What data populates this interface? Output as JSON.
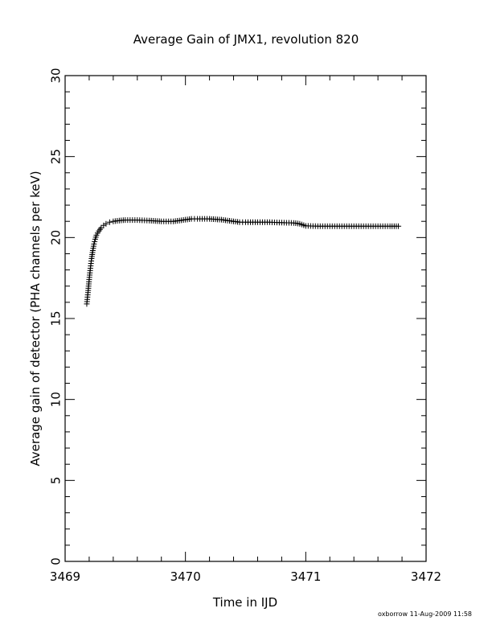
{
  "chart_data": {
    "type": "scatter",
    "title": "Average Gain of JMX1, revolution 820",
    "xlabel": "Time in IJD",
    "ylabel": "Average gain of detector (PHA channels per keV)",
    "xlim": [
      3469,
      3472
    ],
    "ylim": [
      0,
      30
    ],
    "xticks": [
      "3469",
      "3470",
      "3471",
      "3472"
    ],
    "yticks": [
      "0",
      "5",
      "10",
      "15",
      "20",
      "25",
      "30"
    ],
    "grid": false,
    "marker": "plus",
    "series": [
      {
        "x": [
          3469.18,
          3469.19,
          3469.2,
          3469.21,
          3469.22,
          3469.23,
          3469.24,
          3469.25,
          3469.26,
          3469.28,
          3469.3,
          3469.32,
          3469.34,
          3469.37,
          3469.4,
          3469.45,
          3469.5,
          3469.6,
          3469.7,
          3469.8,
          3469.9,
          3470.0,
          3470.05,
          3470.1,
          3470.2,
          3470.3,
          3470.4,
          3470.45,
          3470.5,
          3470.6,
          3470.7,
          3470.8,
          3470.9,
          3470.95,
          3471.0,
          3471.1,
          3471.2,
          3471.3,
          3471.4,
          3471.5,
          3471.6,
          3471.7,
          3471.77
        ],
        "y": [
          15.9,
          16.6,
          17.4,
          18.1,
          18.7,
          19.2,
          19.6,
          19.9,
          20.15,
          20.4,
          20.6,
          20.75,
          20.85,
          20.95,
          21.0,
          21.05,
          21.08,
          21.08,
          21.05,
          21.0,
          21.0,
          21.1,
          21.15,
          21.15,
          21.15,
          21.1,
          21.0,
          20.95,
          20.95,
          20.95,
          20.95,
          20.92,
          20.9,
          20.85,
          20.72,
          20.7,
          20.7,
          20.7,
          20.7,
          20.7,
          20.7,
          20.7,
          20.7
        ]
      }
    ]
  },
  "footer": {
    "stamp": "oxborrow 11-Aug-2009 11:58"
  }
}
